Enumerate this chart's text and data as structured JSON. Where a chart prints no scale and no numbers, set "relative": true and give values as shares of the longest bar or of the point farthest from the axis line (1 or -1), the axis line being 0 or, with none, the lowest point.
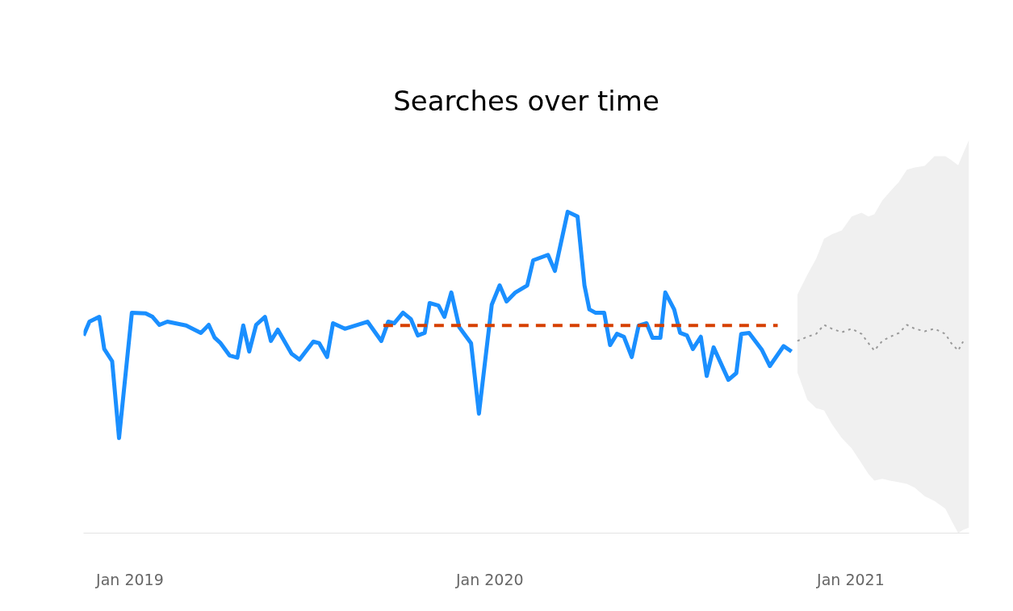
{
  "chart_data": {
    "type": "line",
    "title": "Searches over time",
    "relative": true,
    "xlim": [
      "2018-11-15",
      "2021-05-01"
    ],
    "xticks": [
      {
        "value": "2019-01-01",
        "label": "Jan 2019"
      },
      {
        "value": "2020-01-01",
        "label": "Jan 2020"
      },
      {
        "value": "2021-01-01",
        "label": "Jan 2021"
      }
    ],
    "series": [
      {
        "color": "#9a9a9a",
        "line_style": "dotted",
        "x": [
          "2020-11-08",
          "2020-11-18",
          "2020-11-27",
          "2020-12-05",
          "2020-12-13",
          "2020-12-23",
          "2021-01-02",
          "2021-01-12",
          "2021-01-19",
          "2021-01-25",
          "2021-02-02",
          "2021-02-10",
          "2021-02-19",
          "2021-02-27",
          "2021-03-07",
          "2021-03-17",
          "2021-03-27",
          "2021-04-07",
          "2021-04-13",
          "2021-04-20",
          "2021-04-25",
          "2021-05-01"
        ],
        "values": [
          0.598,
          0.611,
          0.62,
          0.648,
          0.636,
          0.625,
          0.636,
          0.62,
          0.591,
          0.568,
          0.598,
          0.611,
          0.623,
          0.648,
          0.636,
          0.628,
          0.636,
          0.62,
          0.591,
          0.568,
          0.596,
          null
        ],
        "lower": [
          0.5,
          0.415,
          0.389,
          0.382,
          0.339,
          0.296,
          0.264,
          0.217,
          0.184,
          0.163,
          0.169,
          0.163,
          0.158,
          0.153,
          0.141,
          0.115,
          0.1,
          0.076,
          0.04,
          0.0,
          0.01,
          0.017
        ],
        "upper": [
          0.742,
          0.804,
          0.854,
          0.916,
          0.93,
          0.942,
          0.985,
          0.997,
          0.985,
          0.992,
          1.035,
          1.063,
          1.093,
          1.131,
          1.138,
          1.143,
          1.173,
          1.173,
          1.161,
          1.145,
          1.181,
          1.224
        ]
      },
      {
        "color": "#1a8fff",
        "line_style": "solid",
        "x": [
          "2018-11-15",
          "2018-11-21",
          "2018-12-01",
          "2018-12-06",
          "2018-12-14",
          "2018-12-21",
          "2019-01-03",
          "2019-01-17",
          "2019-01-24",
          "2019-01-31",
          "2019-02-08",
          "2019-02-27",
          "2019-03-14",
          "2019-03-22",
          "2019-03-28",
          "2019-04-03",
          "2019-04-12",
          "2019-04-20",
          "2019-04-26",
          "2019-05-02",
          "2019-05-09",
          "2019-05-18",
          "2019-05-24",
          "2019-05-31",
          "2019-06-14",
          "2019-06-22",
          "2019-07-06",
          "2019-07-12",
          "2019-07-20",
          "2019-07-26",
          "2019-08-07",
          "2019-08-30",
          "2019-09-13",
          "2019-09-20",
          "2019-09-26",
          "2019-10-05",
          "2019-10-13",
          "2019-10-20",
          "2019-10-27",
          "2019-11-01",
          "2019-11-10",
          "2019-11-16",
          "2019-11-23",
          "2019-12-01",
          "2019-12-13",
          "2019-12-21",
          "2020-01-03",
          "2020-01-11",
          "2020-01-18",
          "2020-01-27",
          "2020-02-08",
          "2020-02-14",
          "2020-02-29",
          "2020-03-07",
          "2020-03-20",
          "2020-03-30",
          "2020-04-06",
          "2020-04-11",
          "2020-04-17",
          "2020-04-26",
          "2020-05-02",
          "2020-05-09",
          "2020-05-16",
          "2020-05-24",
          "2020-05-31",
          "2020-06-08",
          "2020-06-14",
          "2020-06-22",
          "2020-06-27",
          "2020-07-06",
          "2020-07-12",
          "2020-07-19",
          "2020-07-25",
          "2020-08-02",
          "2020-08-08",
          "2020-08-15",
          "2020-08-30",
          "2020-09-07",
          "2020-09-12",
          "2020-09-20",
          "2020-10-03",
          "2020-10-11",
          "2020-10-25",
          "2020-11-02"
        ],
        "values": [
          0.615,
          0.658,
          0.673,
          0.573,
          0.535,
          0.296,
          0.686,
          0.684,
          0.673,
          0.648,
          0.658,
          0.646,
          0.623,
          0.648,
          0.608,
          0.591,
          0.553,
          0.546,
          0.646,
          0.565,
          0.648,
          0.673,
          0.598,
          0.633,
          0.558,
          0.54,
          0.596,
          0.591,
          0.548,
          0.653,
          0.636,
          0.658,
          0.598,
          0.658,
          0.653,
          0.686,
          0.666,
          0.615,
          0.623,
          0.716,
          0.708,
          0.673,
          0.749,
          0.641,
          0.591,
          0.372,
          0.711,
          0.771,
          0.721,
          0.749,
          0.771,
          0.849,
          0.866,
          0.816,
          1.0,
          0.985,
          0.771,
          0.696,
          0.686,
          0.686,
          0.585,
          0.62,
          0.611,
          0.548,
          0.646,
          0.653,
          0.608,
          0.608,
          0.749,
          0.696,
          0.623,
          0.615,
          0.573,
          0.611,
          0.489,
          0.578,
          0.477,
          0.498,
          0.62,
          0.623,
          0.57,
          0.52,
          0.582,
          0.565
        ]
      },
      {
        "color": "#d64000",
        "line_style": "dashed",
        "x": [
          "2019-09-15",
          "2020-10-19"
        ],
        "values": [
          0.646,
          0.646
        ]
      }
    ]
  }
}
